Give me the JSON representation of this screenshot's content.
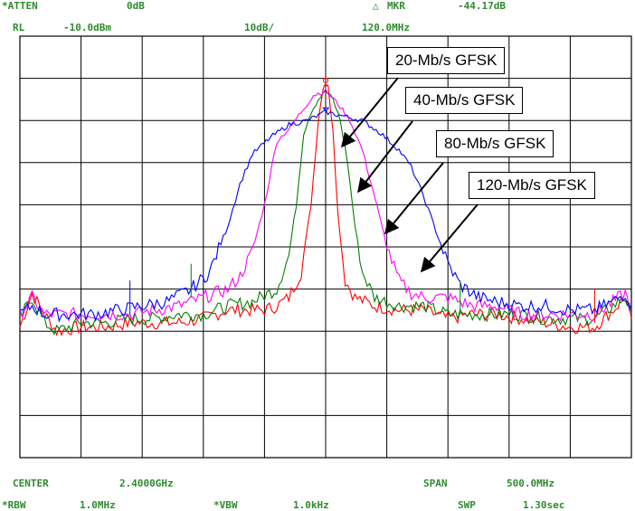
{
  "header": {
    "atten_label": "*ATTEN",
    "atten_value": "0dB",
    "mkr_label": "MKR",
    "mkr_value": "-44.17dB",
    "rl_label": "RL",
    "rl_value": "-10.0dBm",
    "scale": "10dB/",
    "mkr_freq": "120.0MHz"
  },
  "footer": {
    "center_label": "CENTER",
    "center_value": "2.4000GHz",
    "span_label": "SPAN",
    "span_value": "500.0MHz",
    "rbw_label": "*RBW",
    "rbw_value": "1.0MHz",
    "vbw_label": "*VBW",
    "vbw_value": "1.0kHz",
    "swp_label": "SWP",
    "swp_value": "1.30sec"
  },
  "colors": {
    "text": "#2e8b2e",
    "grid": "#000000",
    "series_20": "#ff0000",
    "series_40": "#008000",
    "series_80": "#ff00ff",
    "series_120": "#0000ff"
  },
  "chart_data": {
    "type": "line",
    "title": "",
    "xlabel": "",
    "ylabel": "",
    "x_unit": "MHz offset from center",
    "xlim": [
      -250,
      250
    ],
    "ylim": [
      -110,
      -10
    ],
    "grid": true,
    "divisions": {
      "x": 10,
      "y": 10
    },
    "series": [
      {
        "name": "20-Mb/s GFSK",
        "color": "#ff0000",
        "points": [
          [
            -250,
            -79
          ],
          [
            -240,
            -71
          ],
          [
            -230,
            -76
          ],
          [
            -220,
            -80
          ],
          [
            -200,
            -79
          ],
          [
            -180,
            -79
          ],
          [
            -160,
            -78
          ],
          [
            -140,
            -78
          ],
          [
            -120,
            -78
          ],
          [
            -100,
            -77
          ],
          [
            -80,
            -75
          ],
          [
            -60,
            -75
          ],
          [
            -50,
            -75
          ],
          [
            -40,
            -74
          ],
          [
            -30,
            -72
          ],
          [
            -20,
            -66
          ],
          [
            -12,
            -50
          ],
          [
            -6,
            -30
          ],
          [
            -2,
            -22
          ],
          [
            0,
            -21
          ],
          [
            2,
            -22
          ],
          [
            6,
            -32
          ],
          [
            10,
            -52
          ],
          [
            16,
            -68
          ],
          [
            24,
            -72
          ],
          [
            40,
            -74
          ],
          [
            60,
            -75
          ],
          [
            80,
            -75
          ],
          [
            100,
            -77
          ],
          [
            120,
            -76
          ],
          [
            140,
            -76
          ],
          [
            160,
            -77
          ],
          [
            180,
            -78
          ],
          [
            200,
            -79
          ],
          [
            220,
            -79
          ],
          [
            235,
            -75
          ],
          [
            245,
            -72
          ],
          [
            250,
            -77
          ]
        ]
      },
      {
        "name": "40-Mb/s GFSK",
        "color": "#008000",
        "points": [
          [
            -250,
            -77
          ],
          [
            -240,
            -72
          ],
          [
            -230,
            -78
          ],
          [
            -220,
            -80
          ],
          [
            -200,
            -78
          ],
          [
            -180,
            -78
          ],
          [
            -160,
            -77
          ],
          [
            -140,
            -77
          ],
          [
            -120,
            -76
          ],
          [
            -100,
            -76
          ],
          [
            -80,
            -74
          ],
          [
            -60,
            -73
          ],
          [
            -40,
            -70
          ],
          [
            -30,
            -62
          ],
          [
            -24,
            -50
          ],
          [
            -18,
            -33
          ],
          [
            -12,
            -28
          ],
          [
            -6,
            -25
          ],
          [
            0,
            -23
          ],
          [
            6,
            -25
          ],
          [
            12,
            -30
          ],
          [
            18,
            -40
          ],
          [
            24,
            -55
          ],
          [
            30,
            -66
          ],
          [
            40,
            -72
          ],
          [
            60,
            -74
          ],
          [
            80,
            -74
          ],
          [
            100,
            -76
          ],
          [
            120,
            -76
          ],
          [
            140,
            -76
          ],
          [
            160,
            -76
          ],
          [
            180,
            -77
          ],
          [
            200,
            -77
          ],
          [
            220,
            -77
          ],
          [
            235,
            -74
          ],
          [
            245,
            -72
          ],
          [
            250,
            -76
          ]
        ]
      },
      {
        "name": "80-Mb/s GFSK",
        "color": "#ff00ff",
        "points": [
          [
            -250,
            -76
          ],
          [
            -240,
            -72
          ],
          [
            -230,
            -76
          ],
          [
            -220,
            -76
          ],
          [
            -200,
            -76
          ],
          [
            -180,
            -76
          ],
          [
            -160,
            -76
          ],
          [
            -140,
            -75
          ],
          [
            -120,
            -74
          ],
          [
            -100,
            -72
          ],
          [
            -80,
            -70
          ],
          [
            -70,
            -67
          ],
          [
            -60,
            -61
          ],
          [
            -50,
            -50
          ],
          [
            -40,
            -35
          ],
          [
            -30,
            -32
          ],
          [
            -20,
            -28
          ],
          [
            -10,
            -24
          ],
          [
            0,
            -23
          ],
          [
            10,
            -26
          ],
          [
            20,
            -30
          ],
          [
            30,
            -37
          ],
          [
            40,
            -48
          ],
          [
            50,
            -60
          ],
          [
            60,
            -68
          ],
          [
            70,
            -71
          ],
          [
            80,
            -72
          ],
          [
            100,
            -72
          ],
          [
            120,
            -74
          ],
          [
            140,
            -74
          ],
          [
            160,
            -76
          ],
          [
            180,
            -76
          ],
          [
            200,
            -76
          ],
          [
            220,
            -76
          ],
          [
            235,
            -73
          ],
          [
            245,
            -71
          ],
          [
            250,
            -75
          ]
        ]
      },
      {
        "name": "120-Mb/s GFSK",
        "color": "#0000ff",
        "points": [
          [
            -250,
            -76
          ],
          [
            -240,
            -74
          ],
          [
            -230,
            -76
          ],
          [
            -210,
            -76
          ],
          [
            -190,
            -76
          ],
          [
            -170,
            -75
          ],
          [
            -150,
            -74
          ],
          [
            -130,
            -73
          ],
          [
            -110,
            -70
          ],
          [
            -95,
            -66
          ],
          [
            -80,
            -55
          ],
          [
            -70,
            -45
          ],
          [
            -60,
            -38
          ],
          [
            -45,
            -34
          ],
          [
            -30,
            -31
          ],
          [
            -15,
            -30
          ],
          [
            0,
            -28
          ],
          [
            15,
            -29
          ],
          [
            30,
            -30
          ],
          [
            45,
            -33
          ],
          [
            60,
            -37
          ],
          [
            70,
            -41
          ],
          [
            80,
            -48
          ],
          [
            90,
            -56
          ],
          [
            100,
            -64
          ],
          [
            110,
            -69
          ],
          [
            125,
            -72
          ],
          [
            140,
            -73
          ],
          [
            160,
            -74
          ],
          [
            180,
            -74
          ],
          [
            200,
            -75
          ],
          [
            220,
            -75
          ],
          [
            235,
            -73
          ],
          [
            245,
            -71
          ],
          [
            250,
            -74
          ]
        ]
      }
    ],
    "annotations": [
      {
        "text": "20-Mb/s GFSK",
        "target_series": 0
      },
      {
        "text": "40-Mb/s GFSK",
        "target_series": 1
      },
      {
        "text": "80-Mb/s GFSK",
        "target_series": 2
      },
      {
        "text": "120-Mb/s GFSK",
        "target_series": 3
      }
    ]
  }
}
